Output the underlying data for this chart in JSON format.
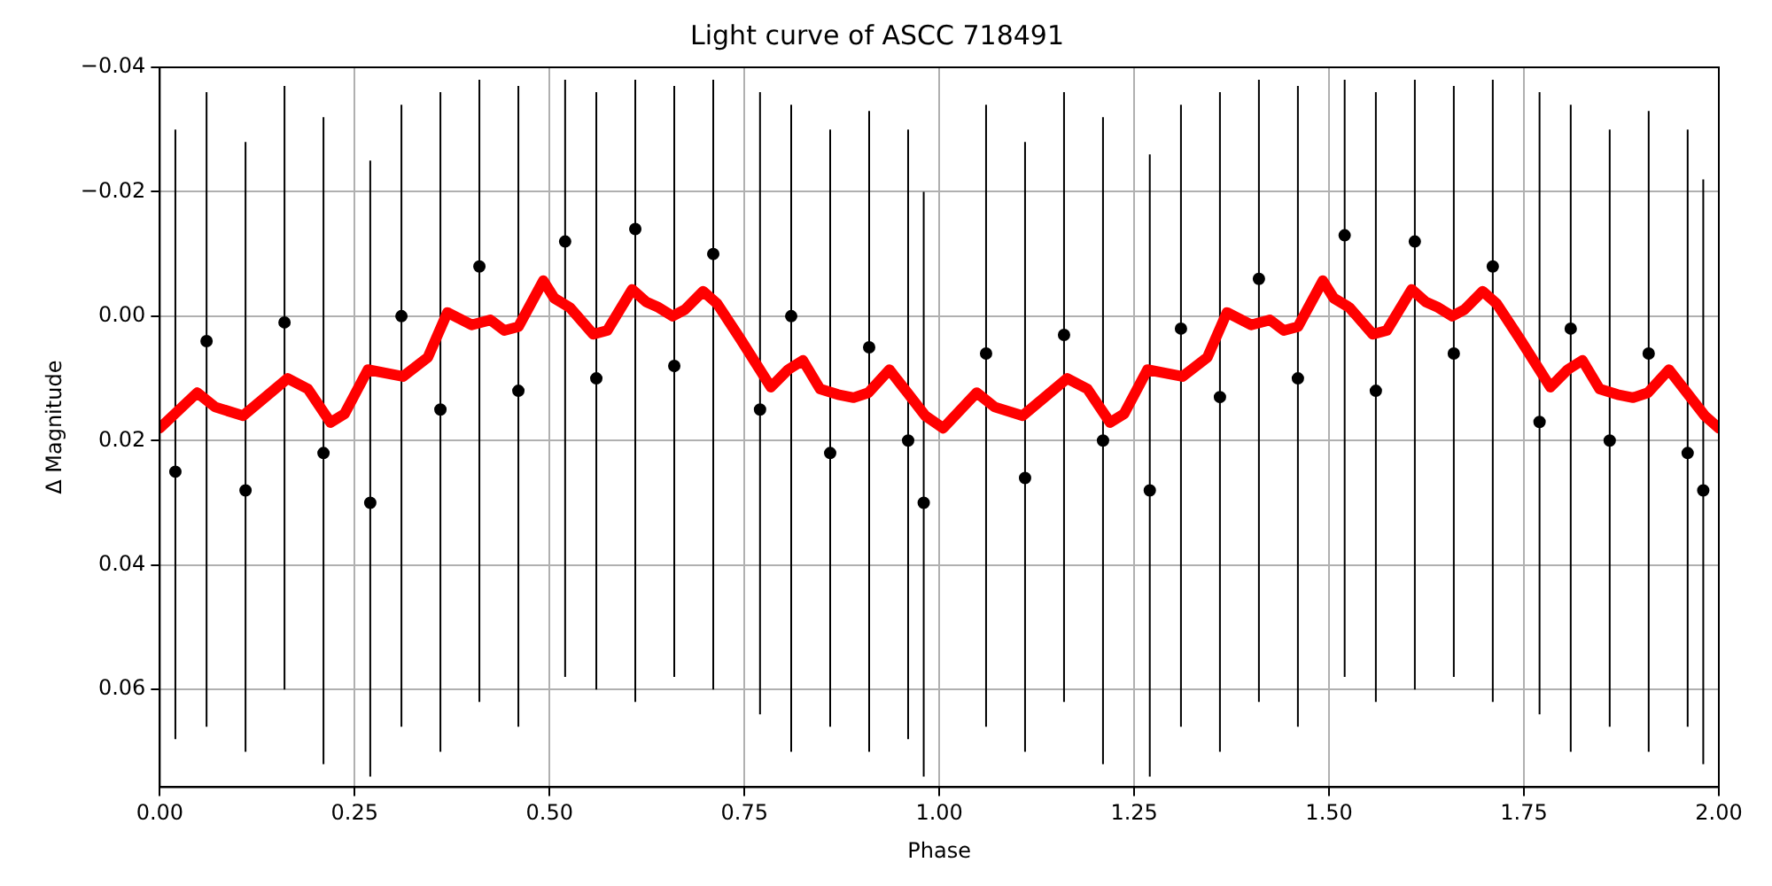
{
  "chart_data": {
    "type": "scatter",
    "title": "Light curve of ASCC 718491",
    "xlabel": "Phase",
    "ylabel": "Δ Magnitude",
    "xlim": [
      0,
      2
    ],
    "xticks": [
      {
        "value": 0,
        "label": "0.00"
      },
      {
        "value": 0.25,
        "label": "0.25"
      },
      {
        "value": 0.5,
        "label": "0.50"
      },
      {
        "value": 0.75,
        "label": "0.75"
      },
      {
        "value": 1,
        "label": "1.00"
      },
      {
        "value": 1.25,
        "label": "1.25"
      },
      {
        "value": 1.5,
        "label": "1.50"
      },
      {
        "value": 1.75,
        "label": "1.75"
      },
      {
        "value": 2,
        "label": "2.00"
      }
    ],
    "ylim": [
      0.0757,
      -0.04
    ],
    "yticks": [
      {
        "value": -0.04,
        "label": "−0.04"
      },
      {
        "value": -0.02,
        "label": "−0.02"
      },
      {
        "value": 0,
        "label": "0.00"
      },
      {
        "value": 0.02,
        "label": "0.02"
      },
      {
        "value": 0.04,
        "label": "0.04"
      },
      {
        "value": 0.06,
        "label": "0.06"
      }
    ],
    "grid": true,
    "legend": false,
    "series": [
      {
        "type": "scatter",
        "marker": "circle",
        "color": "#000000",
        "x": [
          0.02,
          0.06,
          0.11,
          0.16,
          0.21,
          0.27,
          0.31,
          0.36,
          0.41,
          0.46,
          0.52,
          0.56,
          0.61,
          0.66,
          0.71,
          0.77,
          0.81,
          0.86,
          0.91,
          0.96,
          0.98,
          1.06,
          1.11,
          1.16,
          1.21,
          1.27,
          1.31,
          1.36,
          1.41,
          1.46,
          1.52,
          1.56,
          1.61,
          1.66,
          1.71,
          1.77,
          1.81,
          1.86,
          1.91,
          1.96,
          1.98
        ],
        "values": [
          0.025,
          0.004,
          0.028,
          0.001,
          0.022,
          0.03,
          0,
          0.015,
          -0.008,
          0.012,
          -0.012,
          0.01,
          -0.014,
          0.008,
          -0.01,
          0.015,
          0,
          0.022,
          0.005,
          0.02,
          0.03,
          0.006,
          0.026,
          0.003,
          0.02,
          0.028,
          0.002,
          0.013,
          -0.006,
          0.01,
          -0.013,
          0.012,
          -0.012,
          0.006,
          -0.008,
          0.017,
          0.002,
          0.02,
          0.006,
          0.022,
          0.028
        ],
        "errors": [
          [
            -0.03,
            0.068
          ],
          [
            -0.036,
            0.066
          ],
          [
            -0.028,
            0.07
          ],
          [
            -0.037,
            0.06
          ],
          [
            -0.032,
            0.072
          ],
          [
            -0.025,
            0.074
          ],
          [
            -0.034,
            0.066
          ],
          [
            -0.036,
            0.07
          ],
          [
            -0.038,
            0.062
          ],
          [
            -0.037,
            0.066
          ],
          [
            -0.038,
            0.058
          ],
          [
            -0.036,
            0.06
          ],
          [
            -0.038,
            0.062
          ],
          [
            -0.037,
            0.058
          ],
          [
            -0.038,
            0.06
          ],
          [
            -0.036,
            0.064
          ],
          [
            -0.034,
            0.07
          ],
          [
            -0.03,
            0.066
          ],
          [
            -0.033,
            0.07
          ],
          [
            -0.03,
            0.068
          ],
          [
            -0.02,
            0.074
          ],
          [
            -0.034,
            0.066
          ],
          [
            -0.028,
            0.07
          ],
          [
            -0.036,
            0.062
          ],
          [
            -0.032,
            0.072
          ],
          [
            -0.026,
            0.074
          ],
          [
            -0.034,
            0.066
          ],
          [
            -0.036,
            0.07
          ],
          [
            -0.038,
            0.062
          ],
          [
            -0.037,
            0.066
          ],
          [
            -0.038,
            0.058
          ],
          [
            -0.036,
            0.062
          ],
          [
            -0.038,
            0.06
          ],
          [
            -0.037,
            0.058
          ],
          [
            -0.038,
            0.062
          ],
          [
            -0.036,
            0.064
          ],
          [
            -0.034,
            0.07
          ],
          [
            -0.03,
            0.066
          ],
          [
            -0.033,
            0.07
          ],
          [
            -0.03,
            0.066
          ],
          [
            -0.022,
            0.072
          ]
        ]
      },
      {
        "type": "line",
        "marker": "none",
        "color": "#ff0000",
        "x": [
          0,
          0.048,
          0.071,
          0.107,
          0.164,
          0.19,
          0.219,
          0.237,
          0.267,
          0.312,
          0.344,
          0.369,
          0.4,
          0.424,
          0.442,
          0.46,
          0.492,
          0.506,
          0.526,
          0.556,
          0.574,
          0.606,
          0.624,
          0.64,
          0.658,
          0.674,
          0.697,
          0.715,
          0.745,
          0.784,
          0.806,
          0.825,
          0.847,
          0.87,
          0.89,
          0.909,
          0.936,
          0.982,
          1.005,
          1.048,
          1.071,
          1.107,
          1.164,
          1.19,
          1.219,
          1.237,
          1.267,
          1.312,
          1.344,
          1.369,
          1.4,
          1.424,
          1.442,
          1.46,
          1.492,
          1.506,
          1.526,
          1.556,
          1.574,
          1.606,
          1.624,
          1.64,
          1.658,
          1.674,
          1.697,
          1.715,
          1.745,
          1.784,
          1.806,
          1.825,
          1.847,
          1.87,
          1.89,
          1.909,
          1.936,
          1.982,
          2
        ],
        "values": [
          0.018,
          0.0123,
          0.0146,
          0.016,
          0.01,
          0.0117,
          0.0171,
          0.0157,
          0.0086,
          0.0097,
          0.0066,
          -0.0006,
          0.0014,
          0.0006,
          0.0023,
          0.0017,
          -0.0057,
          -0.0029,
          -0.0014,
          0.0029,
          0.0023,
          -0.0043,
          -0.0023,
          -0.0014,
          0,
          -0.0011,
          -0.004,
          -0.002,
          0.0037,
          0.0114,
          0.0086,
          0.0071,
          0.0117,
          0.0126,
          0.0131,
          0.0123,
          0.0086,
          0.016,
          0.018,
          0.0123,
          0.0146,
          0.016,
          0.01,
          0.0117,
          0.0171,
          0.0157,
          0.0086,
          0.0097,
          0.0066,
          -0.0006,
          0.0014,
          0.0006,
          0.0023,
          0.0017,
          -0.0057,
          -0.0029,
          -0.0014,
          0.0029,
          0.0023,
          -0.0043,
          -0.0023,
          -0.0014,
          0,
          -0.0011,
          -0.004,
          -0.002,
          0.0037,
          0.0114,
          0.0086,
          0.0071,
          0.0117,
          0.0126,
          0.0131,
          0.0123,
          0.0086,
          0.016,
          0.018
        ]
      }
    ]
  }
}
